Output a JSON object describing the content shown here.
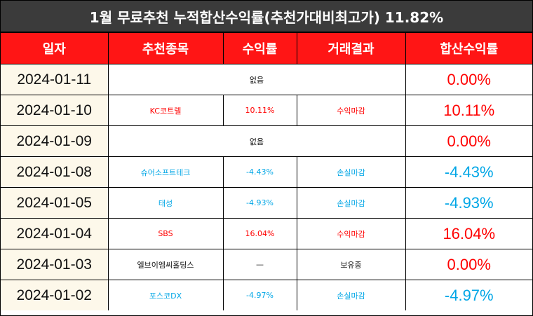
{
  "title": "1월 무료추천 누적합산수익률(추천가대비최고가) 11.82%",
  "headers": [
    "일자",
    "추천종목",
    "수익률",
    "거래결과",
    "합산수익률"
  ],
  "rows": [
    {
      "date": "2024-01-11",
      "merged": true,
      "merged_text": "없음",
      "total": "0.00%",
      "total_color": "red"
    },
    {
      "date": "2024-01-10",
      "stock": "KC코트렐",
      "rate": "10.11%",
      "result": "수익마감",
      "color": "red",
      "total": "10.11%",
      "total_color": "red"
    },
    {
      "date": "2024-01-09",
      "merged": true,
      "merged_text": "없음",
      "total": "0.00%",
      "total_color": "red"
    },
    {
      "date": "2024-01-08",
      "stock": "슈어소프트테크",
      "rate": "-4.43%",
      "result": "손실마감",
      "color": "blue",
      "total": "-4.43%",
      "total_color": "blue"
    },
    {
      "date": "2024-01-05",
      "stock": "태성",
      "rate": "-4.93%",
      "result": "손실마감",
      "color": "blue",
      "total": "-4.93%",
      "total_color": "blue"
    },
    {
      "date": "2024-01-04",
      "stock": "SBS",
      "rate": "16.04%",
      "result": "수익마감",
      "color": "red",
      "total": "16.04%",
      "total_color": "red"
    },
    {
      "date": "2024-01-03",
      "stock": "엘브이엠씨홀딩스",
      "rate": "—",
      "result": "보유중",
      "color": "black",
      "total": "0.00%",
      "total_color": "red"
    },
    {
      "date": "2024-01-02",
      "stock": "포스코DX",
      "rate": "-4.97%",
      "result": "손실마감",
      "color": "blue",
      "total": "-4.97%",
      "total_color": "blue"
    }
  ],
  "colors": {
    "header_bg": "#ff1515",
    "title_bg": "#3b3b3b",
    "date_bg": "#fdf8ea",
    "red": "#ff0000",
    "blue": "#00a6e6"
  }
}
